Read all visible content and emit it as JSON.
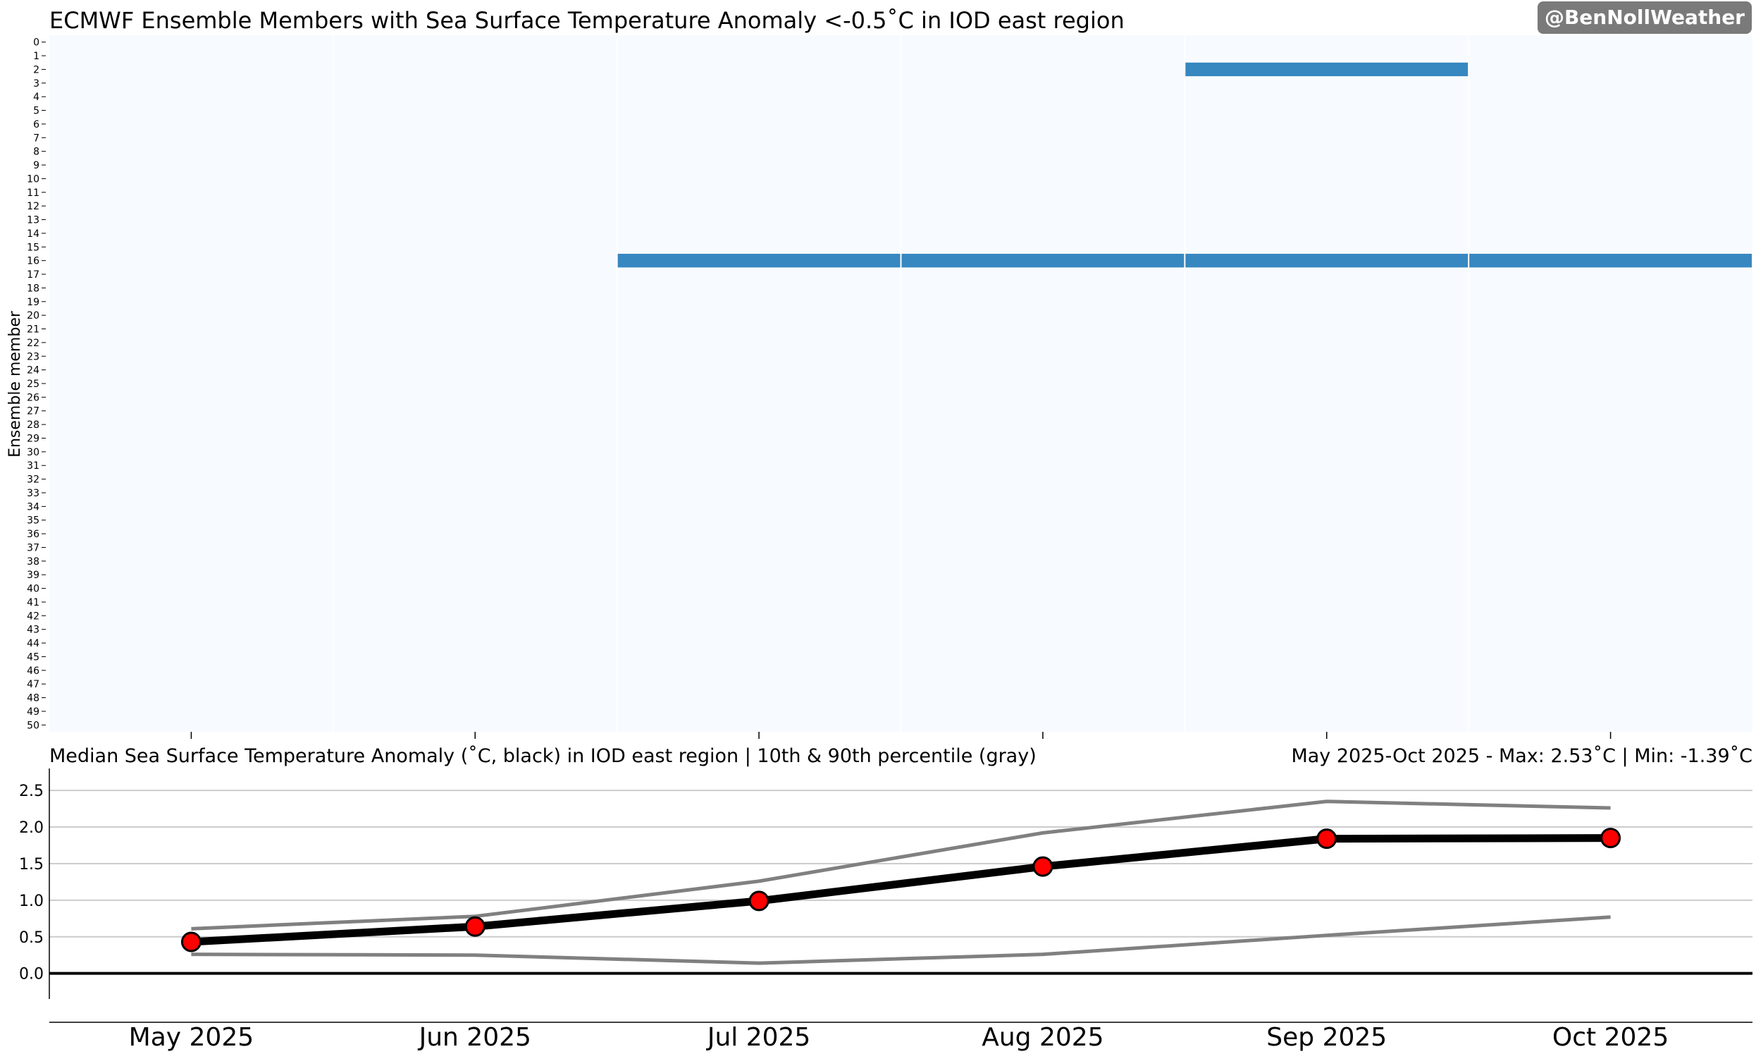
{
  "watermark": "@BenNollWeather",
  "colors": {
    "heat_background": "#f7fbff",
    "heat_on": "#3787c0",
    "median_line": "#000000",
    "percentile_line": "#808080",
    "marker_fill": "#ff0000",
    "gridline": "#cccccc"
  },
  "chart_data": [
    {
      "type": "heatmap",
      "title": "ECMWF Ensemble Members with Sea Surface Temperature Anomaly <-0.5˚C in IOD east region",
      "ylabel": "Ensemble member",
      "members": [
        0,
        1,
        2,
        3,
        4,
        5,
        6,
        7,
        8,
        9,
        10,
        11,
        12,
        13,
        14,
        15,
        16,
        17,
        18,
        19,
        20,
        21,
        22,
        23,
        24,
        25,
        26,
        27,
        28,
        29,
        30,
        31,
        32,
        33,
        34,
        35,
        36,
        37,
        38,
        39,
        40,
        41,
        42,
        43,
        44,
        45,
        46,
        47,
        48,
        49,
        50
      ],
      "months": [
        "May 2025",
        "Jun 2025",
        "Jul 2025",
        "Aug 2025",
        "Sep 2025",
        "Oct 2025"
      ],
      "flagged_cells": [
        {
          "member": 2,
          "month": "Sep 2025"
        },
        {
          "member": 16,
          "month": "Jul 2025"
        },
        {
          "member": 16,
          "month": "Aug 2025"
        },
        {
          "member": 16,
          "month": "Sep 2025"
        },
        {
          "member": 16,
          "month": "Oct 2025"
        }
      ]
    },
    {
      "type": "line",
      "title": "Median Sea Surface Temperature Anomaly (˚C, black) in IOD east region | 10th & 90th percentile (gray)",
      "subtitle": "May 2025-Oct 2025 - Max: 2.53˚C | Min: -1.39˚C",
      "categories": [
        "May 2025",
        "Jun 2025",
        "Jul 2025",
        "Aug 2025",
        "Sep 2025",
        "Oct 2025"
      ],
      "series": [
        {
          "name": "Median",
          "values": [
            0.43,
            0.64,
            0.99,
            1.46,
            1.84,
            1.85
          ]
        },
        {
          "name": "90th percentile",
          "values": [
            0.61,
            0.78,
            1.26,
            1.92,
            2.35,
            2.26
          ]
        },
        {
          "name": "10th percentile",
          "values": [
            0.26,
            0.25,
            0.14,
            0.26,
            0.52,
            0.77
          ]
        }
      ],
      "yticks": [
        "0.0",
        "0.5",
        "1.0",
        "1.5",
        "2.0",
        "2.5"
      ],
      "ylim": [
        -0.35,
        2.8
      ],
      "grid": true
    }
  ]
}
